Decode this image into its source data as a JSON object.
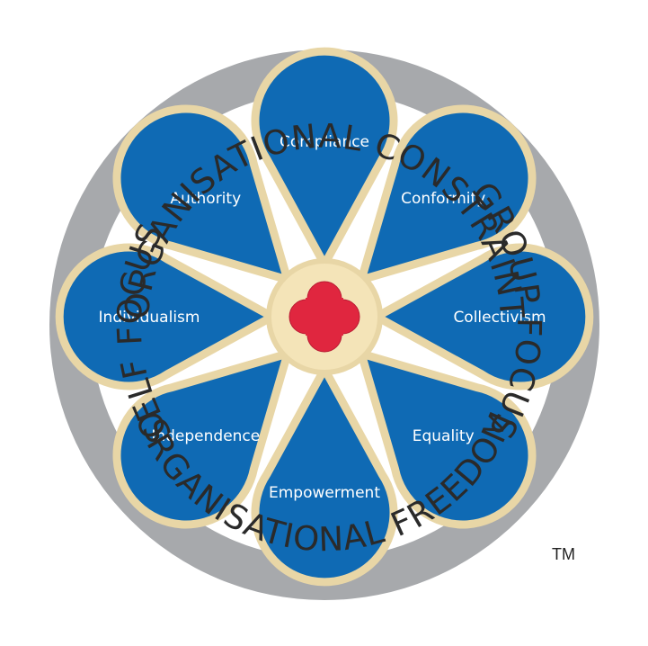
{
  "ring_labels": {
    "top": "ORGANISATIONAL CONSTRAINT",
    "bottom": "ORGANISATIONAL FREEDOM",
    "left": "SELF FOCUS",
    "right": "GROUP FOCUS"
  },
  "petals": [
    {
      "label": "Compliance"
    },
    {
      "label": "Conformity"
    },
    {
      "label": "Collectivism"
    },
    {
      "label": "Equality"
    },
    {
      "label": "Empowerment"
    },
    {
      "label": "Independence"
    },
    {
      "label": "Individualism"
    },
    {
      "label": "Authority"
    }
  ],
  "trademark": "TM",
  "colors": {
    "ring": "#a7a9ac",
    "petal_fill": "#0f6ab4",
    "petal_outline": "#e8d6a6",
    "center": "#e0263f",
    "ring_text": "#2a2a2a"
  }
}
